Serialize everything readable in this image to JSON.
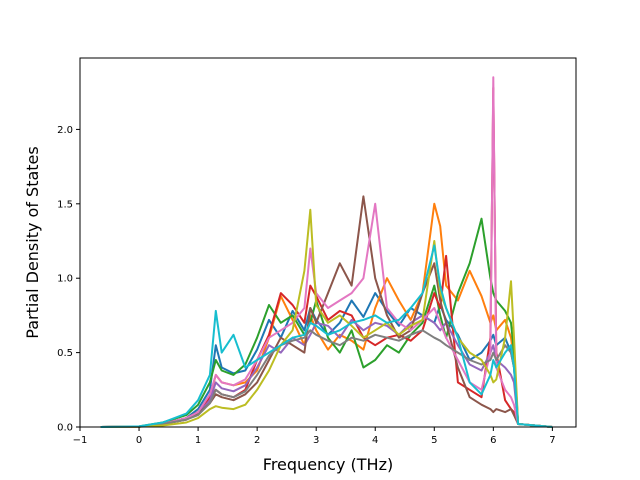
{
  "chart_data": {
    "type": "line",
    "xlabel": "Frequency (THz)",
    "ylabel": "Partial Density of States",
    "xlim": [
      -1.0,
      7.4
    ],
    "ylim": [
      0.0,
      2.48
    ],
    "xticks": [
      -1,
      0,
      1,
      2,
      3,
      4,
      5,
      6,
      7
    ],
    "xtick_labels": [
      "−1",
      "0",
      "1",
      "2",
      "3",
      "4",
      "5",
      "6",
      "7"
    ],
    "yticks": [
      0.0,
      0.5,
      1.0,
      1.5,
      2.0
    ],
    "ytick_labels": [
      "0.0",
      "0.5",
      "1.0",
      "1.5",
      "2.0"
    ],
    "grid": false,
    "legend": "none",
    "x": [
      -0.65,
      0,
      0.4,
      0.8,
      1.0,
      1.2,
      1.3,
      1.4,
      1.6,
      1.8,
      2.0,
      2.2,
      2.4,
      2.6,
      2.8,
      2.9,
      3.0,
      3.2,
      3.4,
      3.6,
      3.8,
      4.0,
      4.2,
      4.4,
      4.6,
      4.8,
      5.0,
      5.1,
      5.2,
      5.4,
      5.6,
      5.8,
      5.95,
      6.0,
      6.05,
      6.2,
      6.3,
      6.35,
      6.42,
      7.0
    ],
    "series": [
      {
        "color": "#1f77b4",
        "values": [
          0,
          0.003,
          0.02,
          0.06,
          0.12,
          0.25,
          0.55,
          0.4,
          0.36,
          0.38,
          0.52,
          0.72,
          0.6,
          0.78,
          0.65,
          0.8,
          0.72,
          0.62,
          0.7,
          0.85,
          0.74,
          0.9,
          0.78,
          0.68,
          0.8,
          0.75,
          0.7,
          0.82,
          0.72,
          0.62,
          0.45,
          0.5,
          0.58,
          0.62,
          0.55,
          0.6,
          0.5,
          0.4,
          0.02,
          0
        ]
      },
      {
        "color": "#ff7f0e",
        "values": [
          0,
          0.002,
          0.02,
          0.05,
          0.1,
          0.2,
          0.35,
          0.3,
          0.28,
          0.3,
          0.38,
          0.6,
          0.88,
          0.72,
          0.55,
          0.75,
          0.65,
          0.52,
          0.62,
          0.58,
          0.52,
          0.8,
          1.0,
          0.85,
          0.72,
          0.9,
          1.5,
          1.35,
          0.95,
          0.85,
          1.05,
          0.88,
          0.7,
          0.75,
          0.65,
          0.72,
          0.6,
          0.45,
          0.02,
          0
        ]
      },
      {
        "color": "#2ca02c",
        "values": [
          0,
          0.004,
          0.03,
          0.08,
          0.15,
          0.3,
          0.45,
          0.38,
          0.35,
          0.42,
          0.6,
          0.82,
          0.7,
          0.75,
          0.62,
          0.7,
          0.85,
          0.6,
          0.5,
          0.65,
          0.4,
          0.45,
          0.55,
          0.5,
          0.62,
          0.7,
          0.95,
          0.75,
          0.6,
          0.9,
          1.1,
          1.4,
          1.0,
          0.9,
          0.85,
          0.78,
          0.7,
          0.5,
          0.02,
          0
        ]
      },
      {
        "color": "#d62728",
        "values": [
          0,
          0.003,
          0.02,
          0.06,
          0.1,
          0.2,
          0.25,
          0.22,
          0.2,
          0.25,
          0.45,
          0.62,
          0.9,
          0.82,
          0.7,
          0.95,
          0.88,
          0.72,
          0.78,
          0.75,
          0.6,
          0.55,
          0.6,
          0.62,
          0.58,
          0.65,
          0.9,
          0.8,
          1.15,
          0.3,
          0.25,
          0.2,
          0.6,
          2.28,
          0.5,
          0.18,
          0.12,
          0.1,
          0.02,
          0
        ]
      },
      {
        "color": "#9467bd",
        "values": [
          0,
          0.002,
          0.02,
          0.05,
          0.09,
          0.18,
          0.3,
          0.26,
          0.24,
          0.28,
          0.4,
          0.55,
          0.5,
          0.6,
          0.55,
          0.62,
          0.7,
          0.68,
          0.6,
          0.72,
          0.65,
          0.7,
          0.68,
          0.62,
          0.7,
          0.75,
          0.7,
          0.65,
          0.7,
          0.55,
          0.42,
          0.38,
          0.5,
          0.55,
          0.45,
          0.4,
          0.35,
          0.3,
          0.02,
          0
        ]
      },
      {
        "color": "#8c564b",
        "values": [
          0,
          0.003,
          0.02,
          0.05,
          0.09,
          0.16,
          0.22,
          0.2,
          0.18,
          0.22,
          0.3,
          0.45,
          0.6,
          0.55,
          0.5,
          0.8,
          0.7,
          0.9,
          1.1,
          0.95,
          1.55,
          1.0,
          0.75,
          0.6,
          0.65,
          0.9,
          1.1,
          0.85,
          0.7,
          0.4,
          0.2,
          0.15,
          0.12,
          0.1,
          0.12,
          0.1,
          0.12,
          0.08,
          0.02,
          0
        ]
      },
      {
        "color": "#e377c2",
        "values": [
          0,
          0.003,
          0.02,
          0.06,
          0.1,
          0.22,
          0.35,
          0.3,
          0.28,
          0.32,
          0.45,
          0.6,
          0.65,
          0.7,
          0.8,
          1.2,
          0.9,
          0.8,
          0.85,
          0.9,
          1.0,
          1.5,
          0.8,
          0.7,
          0.65,
          0.72,
          0.8,
          0.7,
          0.6,
          0.45,
          0.3,
          0.25,
          0.5,
          2.35,
          0.4,
          0.25,
          0.2,
          0.15,
          0.02,
          0
        ]
      },
      {
        "color": "#7f7f7f",
        "values": [
          0,
          0.002,
          0.02,
          0.05,
          0.08,
          0.16,
          0.25,
          0.22,
          0.2,
          0.24,
          0.35,
          0.48,
          0.55,
          0.58,
          0.6,
          0.65,
          0.62,
          0.58,
          0.55,
          0.6,
          0.58,
          0.62,
          0.6,
          0.58,
          0.62,
          0.65,
          0.6,
          0.58,
          0.55,
          0.5,
          0.45,
          0.42,
          0.45,
          0.5,
          0.45,
          0.55,
          0.5,
          0.4,
          0.02,
          0
        ]
      },
      {
        "color": "#bcbd22",
        "values": [
          0,
          0.002,
          0.01,
          0.03,
          0.06,
          0.12,
          0.14,
          0.13,
          0.12,
          0.15,
          0.25,
          0.38,
          0.55,
          0.65,
          1.05,
          1.46,
          0.82,
          0.7,
          0.75,
          0.68,
          0.6,
          0.65,
          0.7,
          0.62,
          0.68,
          0.72,
          1.25,
          0.9,
          0.8,
          0.6,
          0.5,
          0.45,
          0.35,
          0.3,
          0.32,
          0.6,
          0.98,
          0.6,
          0.02,
          0
        ]
      },
      {
        "color": "#17becf",
        "values": [
          0,
          0.004,
          0.03,
          0.09,
          0.18,
          0.35,
          0.78,
          0.5,
          0.62,
          0.4,
          0.45,
          0.5,
          0.55,
          0.6,
          0.62,
          0.7,
          0.68,
          0.62,
          0.65,
          0.7,
          0.72,
          0.75,
          0.7,
          0.72,
          0.8,
          0.9,
          1.22,
          0.95,
          0.8,
          0.6,
          0.3,
          0.22,
          0.35,
          0.45,
          0.4,
          0.5,
          0.55,
          0.4,
          0.02,
          0
        ]
      }
    ]
  }
}
